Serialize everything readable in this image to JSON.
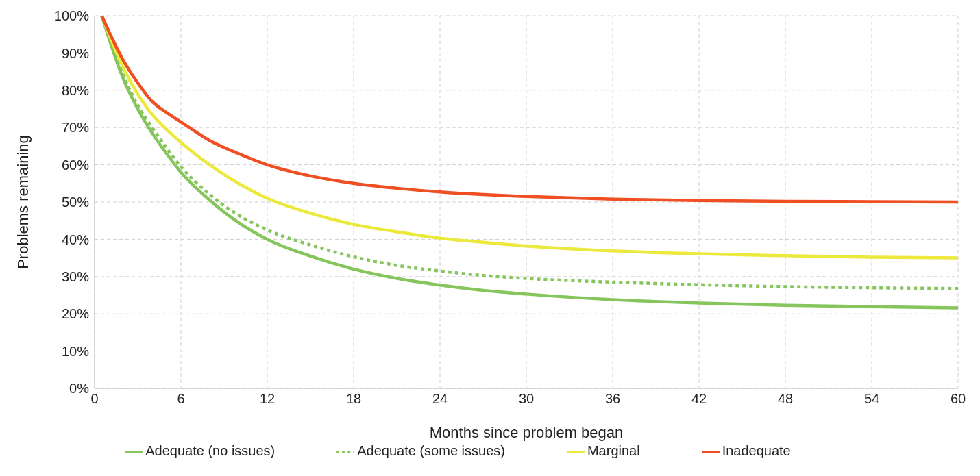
{
  "chart_data": {
    "type": "line",
    "xlabel": "Months since problem began",
    "ylabel": "Problems remaining",
    "x": [
      0.5,
      2,
      3,
      4,
      5,
      6,
      8,
      10,
      12,
      15,
      18,
      21,
      24,
      27,
      30,
      36,
      42,
      48,
      54,
      60
    ],
    "series": [
      {
        "name": "Adequate (no issues)",
        "color": "#86c45c",
        "line_style": "solid",
        "values": [
          100,
          83,
          75,
          68.5,
          63,
          58,
          50.5,
          44.5,
          40,
          35.5,
          32,
          29.5,
          27.7,
          26.3,
          25.3,
          23.8,
          22.9,
          22.3,
          21.9,
          21.6
        ]
      },
      {
        "name": "Adequate (some issues)",
        "color": "#86c45c",
        "line_style": "dotted",
        "values": [
          100,
          84,
          76,
          70,
          64.5,
          59.5,
          52,
          46.5,
          42.5,
          38.5,
          35.3,
          33,
          31.5,
          30.3,
          29.5,
          28.5,
          27.8,
          27.3,
          27,
          26.8
        ]
      },
      {
        "name": "Marginal",
        "color": "#ece83c",
        "line_style": "solid",
        "values": [
          100,
          86,
          79,
          73.5,
          69.5,
          66,
          60,
          55,
          51,
          47,
          44,
          42,
          40.3,
          39.2,
          38.2,
          36.9,
          36.1,
          35.6,
          35.2,
          35
        ]
      },
      {
        "name": "Inadequate",
        "color": "#f04e23",
        "line_style": "solid",
        "values": [
          100,
          88,
          82,
          77,
          74,
          71.5,
          66.5,
          63,
          60,
          57,
          55,
          53.7,
          52.7,
          52,
          51.5,
          50.8,
          50.4,
          50.2,
          50.1,
          50
        ]
      }
    ],
    "xlim": [
      0,
      60
    ],
    "xticks": [
      0,
      6,
      12,
      18,
      24,
      30,
      36,
      42,
      48,
      54,
      60
    ],
    "ylim": [
      0,
      100
    ],
    "yticks": [
      {
        "value": 0,
        "label": "0%"
      },
      {
        "value": 10,
        "label": "10%"
      },
      {
        "value": 20,
        "label": "20%"
      },
      {
        "value": 30,
        "label": "30%"
      },
      {
        "value": 40,
        "label": "40%"
      },
      {
        "value": 50,
        "label": "50%"
      },
      {
        "value": 60,
        "label": "60%"
      },
      {
        "value": 70,
        "label": "70%"
      },
      {
        "value": 80,
        "label": "80%"
      },
      {
        "value": 90,
        "label": "90%"
      },
      {
        "value": 100,
        "label": "100%"
      }
    ],
    "grid": true,
    "legend": "bottom",
    "marker": "none"
  }
}
